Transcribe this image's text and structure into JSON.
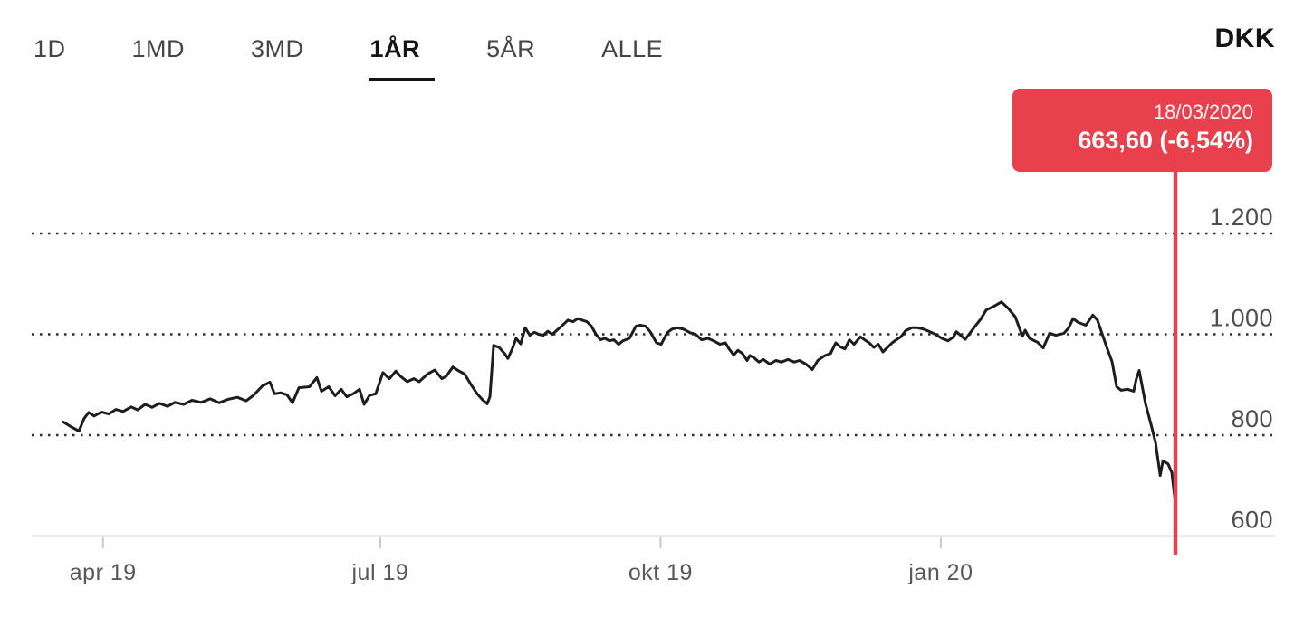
{
  "toolbar": {
    "tabs": [
      {
        "id": "1d",
        "label": "1D",
        "selected": false
      },
      {
        "id": "1md",
        "label": "1MD",
        "selected": false
      },
      {
        "id": "3md",
        "label": "3MD",
        "selected": false
      },
      {
        "id": "1ar",
        "label": "1ÅR",
        "selected": true
      },
      {
        "id": "5ar",
        "label": "5ÅR",
        "selected": false
      },
      {
        "id": "alle",
        "label": "ALLE",
        "selected": false
      }
    ],
    "currency_label": "DKK"
  },
  "tooltip": {
    "date": "18/03/2020",
    "value": "663,60",
    "change": "(-6,54%)"
  },
  "colors": {
    "accent_red": "#e8414d",
    "line": "#1d1d1d",
    "grid_dotted": "#2e2e2e",
    "axis_line": "#d9d9d9",
    "tick": "#c9c9c9",
    "label_gray": "#4d4d4d",
    "tab_gray": "#454545",
    "text_dark": "#141414"
  },
  "chart_data": {
    "type": "line",
    "title": "Share price — 1 year (1ÅR) range with cursor on 18/03/2020",
    "currency": "DKK",
    "x_unit": "days (0 = ~19/03/2019, 365 = 18/03/2020)",
    "x_ticks": [
      {
        "label": "apr 19",
        "day": 13
      },
      {
        "label": "jul 19",
        "day": 104
      },
      {
        "label": "okt 19",
        "day": 196
      },
      {
        "label": "jan 20",
        "day": 288
      }
    ],
    "y_ticks": [
      {
        "label": "600",
        "value": 600
      },
      {
        "label": "800",
        "value": 800
      },
      {
        "label": "1.000",
        "value": 1000
      },
      {
        "label": "1.200",
        "value": 1200
      }
    ],
    "ylim": [
      600,
      1250
    ],
    "grid": "dotted horizontal lines at 800/1000/1200, solid baseline at 600",
    "legend_position": "none",
    "cursor": {
      "day": 365,
      "value": 663.6,
      "date": "18/03/2020",
      "change_pct": -6.54
    },
    "series": [
      {
        "name": "price",
        "points": [
          [
            0,
            826
          ],
          [
            2.4,
            817
          ],
          [
            5.1,
            808
          ],
          [
            6.8,
            833
          ],
          [
            8.3,
            845
          ],
          [
            10.1,
            838
          ],
          [
            12.5,
            846
          ],
          [
            14.9,
            842
          ],
          [
            17.2,
            851
          ],
          [
            19.6,
            847
          ],
          [
            22.3,
            856
          ],
          [
            24.4,
            850
          ],
          [
            26.8,
            861
          ],
          [
            29.1,
            855
          ],
          [
            31.5,
            863
          ],
          [
            34.2,
            857
          ],
          [
            36.6,
            865
          ],
          [
            39.5,
            861
          ],
          [
            42.2,
            869
          ],
          [
            45.2,
            865
          ],
          [
            48.2,
            872
          ],
          [
            51.1,
            864
          ],
          [
            54.1,
            871
          ],
          [
            57.1,
            875
          ],
          [
            60,
            868
          ],
          [
            62.4,
            879
          ],
          [
            65.4,
            898
          ],
          [
            67.8,
            905
          ],
          [
            69.3,
            882
          ],
          [
            71.3,
            884
          ],
          [
            73.4,
            880
          ],
          [
            75.2,
            864
          ],
          [
            77.3,
            894
          ],
          [
            80.8,
            896
          ],
          [
            83.2,
            914
          ],
          [
            84.7,
            887
          ],
          [
            87.1,
            896
          ],
          [
            89.2,
            878
          ],
          [
            91.2,
            891
          ],
          [
            93,
            876
          ],
          [
            95.1,
            882
          ],
          [
            97.2,
            891
          ],
          [
            98.7,
            861
          ],
          [
            100.5,
            879
          ],
          [
            102.5,
            882
          ],
          [
            104.9,
            924
          ],
          [
            107,
            912
          ],
          [
            109.1,
            927
          ],
          [
            110.6,
            917
          ],
          [
            112.9,
            906
          ],
          [
            115,
            912
          ],
          [
            116.8,
            906
          ],
          [
            119.5,
            921
          ],
          [
            121.9,
            929
          ],
          [
            124.2,
            912
          ],
          [
            125.7,
            917
          ],
          [
            127.8,
            935
          ],
          [
            129.9,
            927
          ],
          [
            131.7,
            921
          ],
          [
            133.8,
            900
          ],
          [
            135.8,
            882
          ],
          [
            137.6,
            870
          ],
          [
            139.1,
            862
          ],
          [
            140,
            876
          ],
          [
            141.2,
            978
          ],
          [
            143,
            974
          ],
          [
            144.8,
            962
          ],
          [
            145.9,
            952
          ],
          [
            147.4,
            972
          ],
          [
            148.6,
            992
          ],
          [
            150.1,
            981
          ],
          [
            151.6,
            1013
          ],
          [
            153.1,
            998
          ],
          [
            154.6,
            1004
          ],
          [
            156,
            1000
          ],
          [
            157.5,
            998
          ],
          [
            159,
            1006
          ],
          [
            160.5,
            1000
          ],
          [
            162,
            1008
          ],
          [
            163.5,
            1016
          ],
          [
            165.6,
            1028
          ],
          [
            167.3,
            1025
          ],
          [
            168.8,
            1031
          ],
          [
            170.3,
            1028
          ],
          [
            171.8,
            1025
          ],
          [
            173.3,
            1016
          ],
          [
            174.8,
            1000
          ],
          [
            176.3,
            989
          ],
          [
            177.7,
            992
          ],
          [
            179.2,
            987
          ],
          [
            180.7,
            989
          ],
          [
            182.2,
            980
          ],
          [
            183.7,
            987
          ],
          [
            185.8,
            992
          ],
          [
            187.9,
            1016
          ],
          [
            189.3,
            1018
          ],
          [
            191.1,
            1016
          ],
          [
            192.6,
            1005
          ],
          [
            194.7,
            983
          ],
          [
            196.2,
            980
          ],
          [
            198.2,
            1003
          ],
          [
            199.7,
            1010
          ],
          [
            201.5,
            1013
          ],
          [
            203.6,
            1010
          ],
          [
            205.7,
            1003
          ],
          [
            207.5,
            1000
          ],
          [
            209.5,
            989
          ],
          [
            211.6,
            992
          ],
          [
            213.4,
            987
          ],
          [
            215.5,
            980
          ],
          [
            217.3,
            983
          ],
          [
            218.5,
            971
          ],
          [
            220,
            959
          ],
          [
            221.4,
            968
          ],
          [
            222.9,
            962
          ],
          [
            224.4,
            948
          ],
          [
            225.3,
            958
          ],
          [
            226.8,
            953
          ],
          [
            228.3,
            945
          ],
          [
            229.8,
            950
          ],
          [
            231.8,
            941
          ],
          [
            233.9,
            948
          ],
          [
            235.7,
            945
          ],
          [
            237.8,
            950
          ],
          [
            239.9,
            945
          ],
          [
            241.6,
            948
          ],
          [
            243.7,
            941
          ],
          [
            245.8,
            930
          ],
          [
            247.6,
            948
          ],
          [
            249.7,
            957
          ],
          [
            251.8,
            962
          ],
          [
            253.5,
            983
          ],
          [
            255,
            975
          ],
          [
            256.5,
            971
          ],
          [
            258,
            989
          ],
          [
            259.5,
            980
          ],
          [
            261.6,
            995
          ],
          [
            263,
            989
          ],
          [
            264.5,
            983
          ],
          [
            266,
            974
          ],
          [
            267.5,
            980
          ],
          [
            269,
            965
          ],
          [
            270.5,
            974
          ],
          [
            272,
            983
          ],
          [
            273.4,
            989
          ],
          [
            274.9,
            995
          ],
          [
            276.4,
            1007
          ],
          [
            278.5,
            1013
          ],
          [
            280.3,
            1013
          ],
          [
            282.4,
            1010
          ],
          [
            284.4,
            1005
          ],
          [
            286.2,
            1000
          ],
          [
            288.3,
            992
          ],
          [
            290.4,
            987
          ],
          [
            292.2,
            995
          ],
          [
            293.1,
            1005
          ],
          [
            296,
            990
          ],
          [
            299,
            1014
          ],
          [
            301.1,
            1030
          ],
          [
            302.9,
            1048
          ],
          [
            305.3,
            1055
          ],
          [
            307.9,
            1064
          ],
          [
            310,
            1052
          ],
          [
            312.4,
            1035
          ],
          [
            314.8,
            996
          ],
          [
            315.7,
            1008
          ],
          [
            317.1,
            992
          ],
          [
            319.8,
            984
          ],
          [
            321.6,
            973
          ],
          [
            323.7,
            1002
          ],
          [
            325.8,
            998
          ],
          [
            328.4,
            1002
          ],
          [
            329.9,
            1012
          ],
          [
            331.4,
            1031
          ],
          [
            332.9,
            1024
          ],
          [
            335.6,
            1018
          ],
          [
            337.9,
            1038
          ],
          [
            339.4,
            1028
          ],
          [
            342.4,
            975
          ],
          [
            344.2,
            946
          ],
          [
            345.7,
            896
          ],
          [
            347.2,
            889
          ],
          [
            349.3,
            891
          ],
          [
            351.3,
            887
          ],
          [
            352.2,
            912
          ],
          [
            353.1,
            928
          ],
          [
            355.2,
            862
          ],
          [
            357,
            821
          ],
          [
            358.5,
            785
          ],
          [
            360,
            720
          ],
          [
            360.9,
            749
          ],
          [
            362.6,
            743
          ],
          [
            363.8,
            726
          ],
          [
            365,
            663.6
          ]
        ]
      }
    ]
  }
}
